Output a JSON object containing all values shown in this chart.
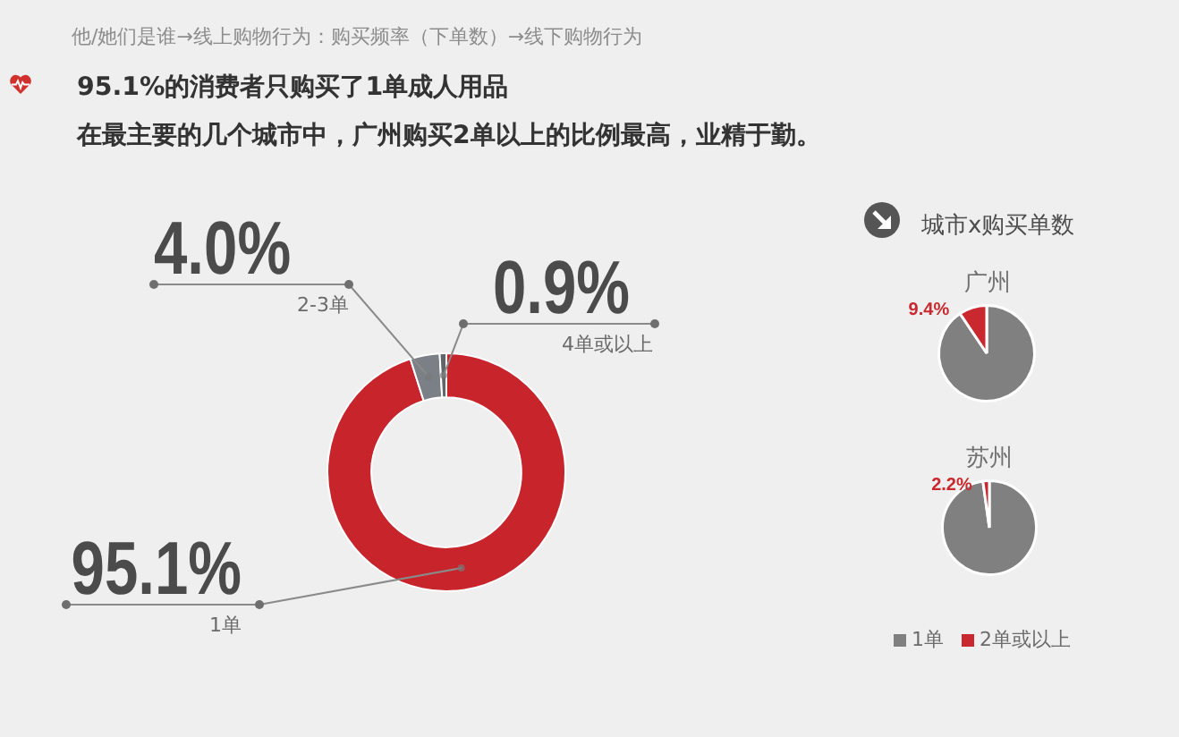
{
  "chart_data": [
    {
      "type": "donut",
      "title": "95.1%的消费者只购买了1单成人用品",
      "subtitle": "在最主要的几个城市中，广州购买2单以上的比例最高，业精于勤。",
      "annotations": [
        "他/她们是谁→线上购物行为：购买频率（下单数）→线下购物行为"
      ],
      "categories": [
        "1单",
        "2-3单",
        "4单或以上"
      ],
      "values": [
        95.1,
        4.0,
        0.9
      ],
      "colors": [
        "#c8242b",
        "#7b8087",
        "#5f656b"
      ],
      "value_labels": [
        "95.1%",
        "4.0%",
        "0.9%"
      ]
    },
    {
      "type": "pie",
      "title": "城市x购买单数",
      "subtitle": "广州",
      "categories": [
        null,
        null
      ],
      "values": [
        90.6,
        9.4
      ],
      "colors": [
        "#808080",
        "#c9282e"
      ],
      "value_labels": [
        null,
        "9.4%"
      ]
    },
    {
      "type": "pie",
      "title": "苏州",
      "categories": [
        "1单",
        "2单或以上"
      ],
      "values": [
        97.8,
        2.2
      ],
      "colors": [
        "#808080",
        "#c9282e"
      ],
      "value_labels": [
        null,
        "2.2%"
      ],
      "legend": "bottom"
    }
  ]
}
